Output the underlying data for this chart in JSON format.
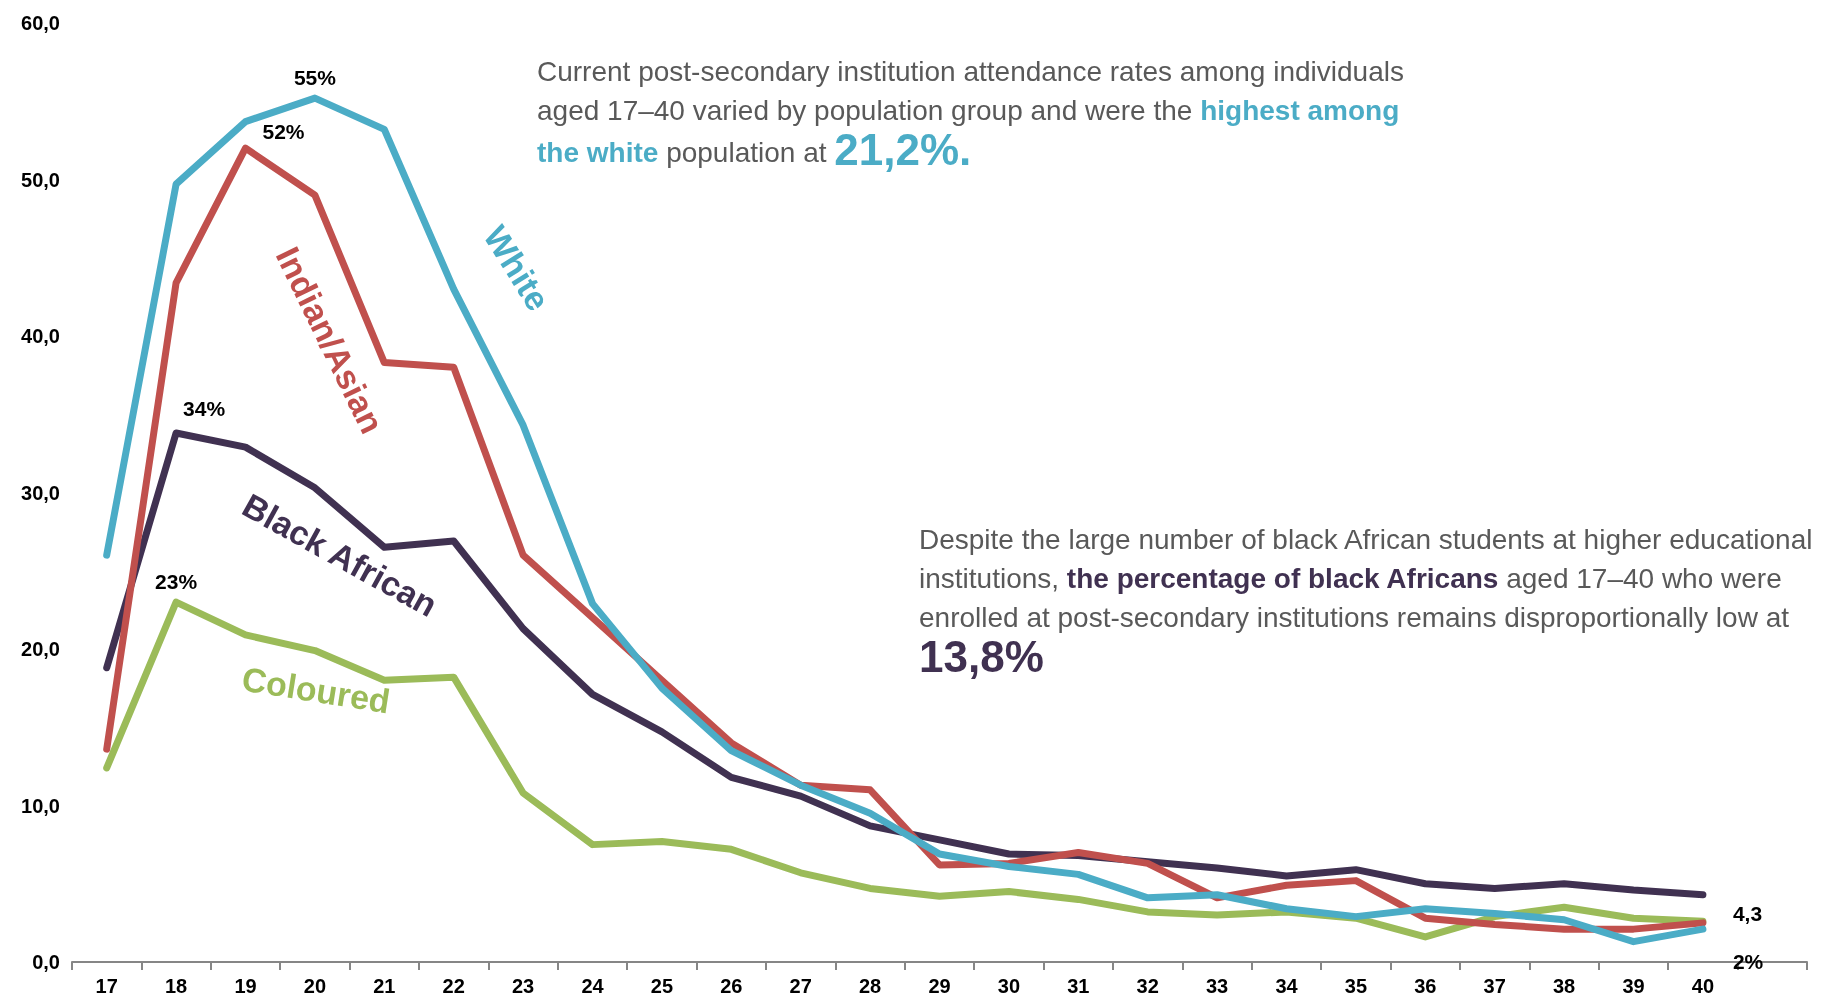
{
  "chart_data": {
    "type": "line",
    "categories": [
      "17",
      "18",
      "19",
      "20",
      "21",
      "22",
      "23",
      "24",
      "25",
      "26",
      "27",
      "28",
      "29",
      "30",
      "31",
      "32",
      "33",
      "34",
      "35",
      "36",
      "37",
      "38",
      "39",
      "40",
      null
    ],
    "series": [
      {
        "name": "White",
        "color": "#4bacc6",
        "values": [
          26,
          49.7,
          53.7,
          55.2,
          53.2,
          43,
          34.3,
          22.9,
          17.5,
          13.5,
          11.3,
          9.5,
          6.9,
          6.1,
          5.6,
          4.1,
          4.3,
          3.4,
          2.9,
          3.4,
          3.1,
          2.7,
          1.3,
          2.1,
          null
        ],
        "value_labels": [
          null,
          null,
          null,
          "55%",
          null,
          null,
          null,
          null,
          null,
          null,
          null,
          null,
          null,
          null,
          null,
          null,
          null,
          null,
          null,
          null,
          null,
          null,
          null,
          "2%",
          null
        ]
      },
      {
        "name": "Indian/Asian",
        "color": "#c0504d",
        "values": [
          13.6,
          43.4,
          52,
          49,
          38.3,
          38,
          26,
          22,
          18,
          14,
          11.3,
          11,
          6.2,
          6.3,
          7,
          6.3,
          4.1,
          4.9,
          5.2,
          2.8,
          2.4,
          2.1,
          2.1,
          2.5,
          null
        ],
        "value_labels": [
          null,
          null,
          "52%",
          null,
          null,
          null,
          null,
          null,
          null,
          null,
          null,
          null,
          null,
          null,
          null,
          null,
          null,
          null,
          null,
          null,
          null,
          null,
          null,
          null,
          null
        ]
      },
      {
        "name": "Black African",
        "color": "#403151",
        "values": [
          18.8,
          33.8,
          32.9,
          30.3,
          26.5,
          26.9,
          21.3,
          17.1,
          14.7,
          11.8,
          10.6,
          8.7,
          7.8,
          6.9,
          6.8,
          6.4,
          6,
          5.5,
          5.9,
          5,
          4.7,
          5,
          4.6,
          4.3,
          null
        ],
        "value_labels": [
          null,
          "34%",
          null,
          null,
          null,
          null,
          null,
          null,
          null,
          null,
          null,
          null,
          null,
          null,
          null,
          null,
          null,
          null,
          null,
          null,
          null,
          null,
          null,
          "4,3",
          null
        ]
      },
      {
        "name": "Coloured",
        "color": "#9bbb59",
        "values": [
          12.4,
          23,
          20.9,
          19.9,
          18,
          18.2,
          10.8,
          7.5,
          7.7,
          7.2,
          5.7,
          4.7,
          4.2,
          4.5,
          4,
          3.2,
          3,
          3.2,
          2.8,
          1.6,
          2.9,
          3.5,
          2.8,
          2.6,
          null
        ],
        "value_labels": [
          null,
          "23%",
          null,
          null,
          null,
          null,
          null,
          null,
          null,
          null,
          null,
          null,
          null,
          null,
          null,
          null,
          null,
          null,
          null,
          null,
          null,
          null,
          null,
          null,
          null
        ]
      }
    ],
    "ylim": [
      0,
      60
    ],
    "yticks": [
      {
        "value": 0,
        "label": "0,0"
      },
      {
        "value": 10,
        "label": "10,0"
      },
      {
        "value": 20,
        "label": "20,0"
      },
      {
        "value": 30,
        "label": "30,0"
      },
      {
        "value": 40,
        "label": "40,0"
      },
      {
        "value": 50,
        "label": "50,0"
      },
      {
        "value": 60,
        "label": "60,0"
      }
    ],
    "grid": false,
    "line_style": "solid",
    "annotations": [
      "Current post-secondary institution attendance rates among individuals aged 17–40 varied by population group and were the",
      "highest among the white",
      "population  at",
      "21,2%.",
      "Despite the large number of black African students at higher educational institutions,",
      "the percentage of black Africans",
      "aged 17–40 who were enrolled at post-secondary institutions remains disproportionally low at",
      "13,8%"
    ]
  }
}
